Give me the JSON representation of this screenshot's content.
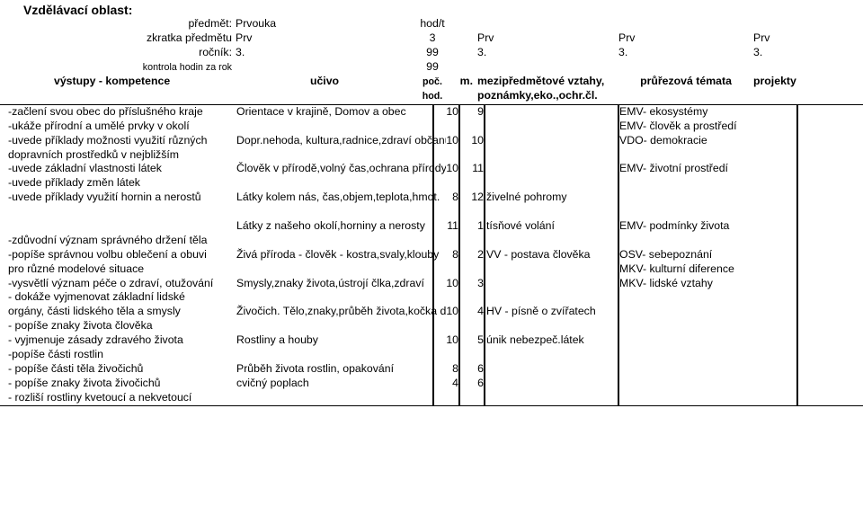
{
  "top": {
    "heading": "Vzdělávací oblast:",
    "rows": [
      {
        "a": "předmět:",
        "b": "Prvouka",
        "c": "hod/t"
      },
      {
        "a": "zkratka předmětu",
        "b": "Prv",
        "c": "3",
        "d": "",
        "e": "Prv",
        "f": "Prv",
        "g": "Prv"
      },
      {
        "a": "ročník:",
        "b": "3.",
        "c": "99",
        "d": "",
        "e": "3.",
        "f": "3.",
        "g": "3."
      },
      {
        "a": "kontrola hodin za rok",
        "b": "",
        "c": "99",
        "small": true
      },
      {
        "a": "výstupy - kompetence",
        "b": "učivo",
        "c": "poč.",
        "d": "m.",
        "e": "mezipředmětové vztahy,",
        "f": "průřezová témata",
        "g": "projekty",
        "bold": true,
        "small_c": true
      },
      {
        "a": "",
        "b": "",
        "c": "hod.",
        "d": "",
        "e": "poznámky,eko.,ochr.čl.",
        "bold": true,
        "small_c": true
      }
    ]
  },
  "body": [
    {
      "a": "-začlení svou obec do příslušného kraje",
      "b": "Orientace v krajině, Domov a obec",
      "c": "10",
      "d": "9",
      "e": "",
      "f": "EMV- ekosystémy"
    },
    {
      "a": "-ukáže přírodní a umělé prvky v okolí",
      "b": "",
      "c": "",
      "d": "",
      "e": "",
      "f": "EMV- člověk a prostředí"
    },
    {
      "a": "-uvede příklady možnosti využití různých",
      "b": "Dopr.nehoda, kultura,radnice,zdraví občanů",
      "c": "10",
      "d": "10",
      "e": "",
      "f": "VDO- demokracie"
    },
    {
      "a": "dopravních prostředků v nejbližším",
      "b": "",
      "c": "",
      "d": "",
      "e": "",
      "f": ""
    },
    {
      "a": "-uvede základní vlastnosti látek",
      "b": "Člověk v přírodě,volný čas,ochrana přírody",
      "c": "10",
      "d": "11",
      "e": "",
      "f": "EMV- životní prostředí"
    },
    {
      "a": "-uvede příklady změn látek",
      "b": "",
      "c": "",
      "d": "",
      "e": "",
      "f": ""
    },
    {
      "a": "-uvede příklady využití hornin a nerostů",
      "b": "Látky kolem nás, čas,objem,teplota,hmot.",
      "c": "8",
      "d": "12",
      "e": "živelné pohromy",
      "f": ""
    },
    {
      "a": "",
      "b": "",
      "c": "",
      "d": "",
      "e": "",
      "f": ""
    },
    {
      "a": "",
      "b": "Látky z našeho okolí,horniny a nerosty",
      "c": "11",
      "d": "1",
      "e": "tísňové volání",
      "f": "EMV- podmínky života"
    },
    {
      "a": "-zdůvodní význam správného držení těla",
      "b": "",
      "c": "",
      "d": "",
      "e": "",
      "f": ""
    },
    {
      "a": "-popíše správnou volbu oblečení a obuvi",
      "b": "Živá příroda - člověk - kostra,svaly,klouby",
      "c": "8",
      "d": "2",
      "e": "VV - postava člověka",
      "f": "OSV- sebepoznání"
    },
    {
      "a": "pro různé modelové situace",
      "b": "",
      "c": "",
      "d": "",
      "e": "",
      "f": "MKV- kulturní diference"
    },
    {
      "a": "-vysvětlí význam péče o zdraví, otužování",
      "b": "Smysly,znaky života,ústrojí člka,zdraví",
      "c": "10",
      "d": "3",
      "e": "",
      "f": "MKV- lidské vztahy"
    },
    {
      "a": "- dokáže vyjmenovat základní lidské",
      "b": "",
      "c": "",
      "d": "",
      "e": "",
      "f": ""
    },
    {
      "a": "orgány, části lidského těla a smysly",
      "b": "Živočich. Tělo,znaky,průběh života,kočka d.",
      "c": "10",
      "d": "4",
      "e": "HV - písně o zvířatech",
      "f": ""
    },
    {
      "a": "- popíše znaky života člověka",
      "b": "",
      "c": "",
      "d": "",
      "e": "",
      "f": ""
    },
    {
      "a": "- vyjmenuje zásady zdravého života",
      "b": "Rostliny a houby",
      "c": "10",
      "d": "5",
      "e": "únik nebezpeč.látek",
      "f": ""
    },
    {
      "a": "-popíše části rostlin",
      "b": "",
      "c": "",
      "d": "",
      "e": "",
      "f": ""
    },
    {
      "a": "- popíše části těla živočichů",
      "b": "Průběh života rostlin, opakování",
      "c": "8",
      "d": "6",
      "e": "",
      "f": ""
    },
    {
      "a": "- popíše znaky života živočichů",
      "b": "cvičný poplach",
      "c": "4",
      "d": "6",
      "e": "",
      "f": ""
    },
    {
      "a": "- rozliší rostliny kvetoucí a nekvetoucí",
      "b": "",
      "c": "",
      "d": "",
      "e": "",
      "f": ""
    }
  ]
}
